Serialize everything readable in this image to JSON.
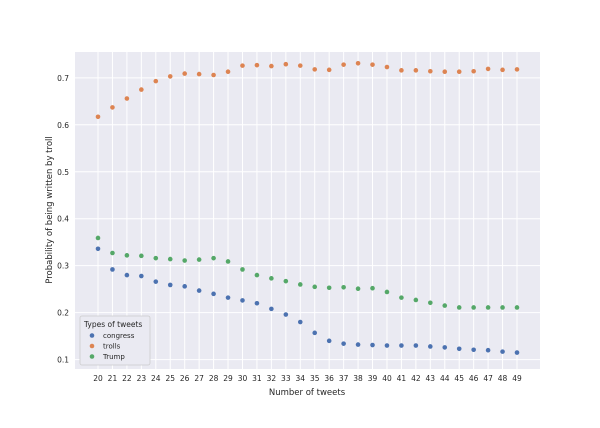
{
  "chart_data": {
    "type": "scatter",
    "title": "",
    "xlabel": "Number of tweets",
    "ylabel": "Probability of being written by troll",
    "x": [
      20,
      21,
      22,
      23,
      24,
      25,
      26,
      27,
      28,
      29,
      30,
      31,
      32,
      33,
      34,
      35,
      36,
      37,
      38,
      39,
      40,
      41,
      42,
      43,
      44,
      45,
      46,
      47,
      48,
      49
    ],
    "ylim": [
      0.08,
      0.755
    ],
    "yticks": [
      "0.1",
      "0.2",
      "0.3",
      "0.4",
      "0.5",
      "0.6",
      "0.7"
    ],
    "grid": true,
    "legend": {
      "title": "Types of tweets",
      "placement": "lower-left"
    },
    "series": [
      {
        "name": "congress",
        "color": "#4c72b0",
        "values": [
          0.336,
          0.292,
          0.28,
          0.278,
          0.266,
          0.259,
          0.256,
          0.247,
          0.24,
          0.232,
          0.226,
          0.22,
          0.208,
          0.196,
          0.18,
          0.157,
          0.14,
          0.134,
          0.132,
          0.131,
          0.13,
          0.13,
          0.13,
          0.128,
          0.126,
          0.123,
          0.121,
          0.12,
          0.117,
          0.115
        ]
      },
      {
        "name": "trolls",
        "color": "#dd8452",
        "values": [
          0.617,
          0.637,
          0.656,
          0.675,
          0.693,
          0.703,
          0.709,
          0.708,
          0.706,
          0.713,
          0.726,
          0.727,
          0.725,
          0.729,
          0.726,
          0.718,
          0.717,
          0.728,
          0.731,
          0.728,
          0.723,
          0.716,
          0.716,
          0.714,
          0.713,
          0.713,
          0.714,
          0.719,
          0.717,
          0.718
        ]
      },
      {
        "name": "Trump",
        "color": "#55a868",
        "values": [
          0.359,
          0.327,
          0.322,
          0.321,
          0.316,
          0.314,
          0.311,
          0.313,
          0.316,
          0.309,
          0.292,
          0.28,
          0.273,
          0.267,
          0.26,
          0.255,
          0.253,
          0.254,
          0.251,
          0.252,
          0.244,
          0.232,
          0.227,
          0.221,
          0.215,
          0.211,
          0.211,
          0.211,
          0.211,
          0.211
        ]
      }
    ]
  }
}
